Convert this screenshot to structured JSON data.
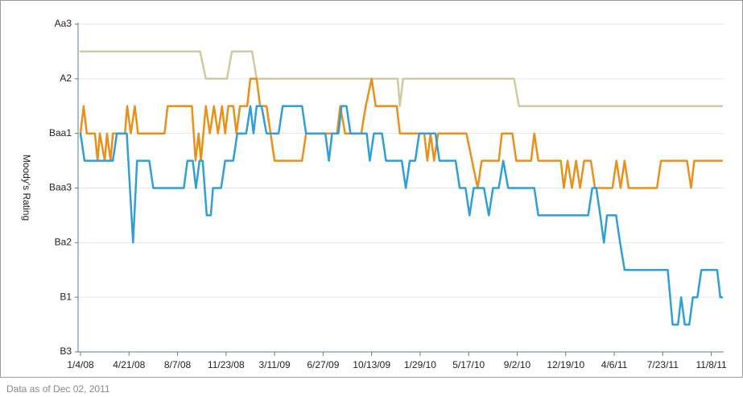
{
  "chart_data": {
    "type": "line",
    "y_label": "Moody's Rating",
    "footnote": "Data as of Dec 02, 2011",
    "xlim": [
      "1/4/08",
      "12/2/11"
    ],
    "xticks": [
      "1/4/08",
      "4/21/08",
      "8/7/08",
      "11/23/08",
      "3/11/09",
      "6/27/09",
      "10/13/09",
      "1/29/10",
      "5/17/10",
      "9/2/10",
      "12/19/10",
      "4/6/11",
      "7/23/11",
      "11/8/11"
    ],
    "ylim": [
      0,
      12
    ],
    "yticks": [
      {
        "value": 0,
        "label": "B3"
      },
      {
        "value": 2,
        "label": "B1"
      },
      {
        "value": 4,
        "label": "Ba2"
      },
      {
        "value": 6,
        "label": "Baa3"
      },
      {
        "value": 8,
        "label": "Baa1"
      },
      {
        "value": 10,
        "label": "A2"
      },
      {
        "value": 12,
        "label": "Aa3"
      }
    ],
    "grid": true,
    "series": [
      {
        "color": "#cfcaa0",
        "x": [
          "1/4/08",
          "9/26/08",
          "10/9/08",
          "11/25/08",
          "12/6/08",
          "1/20/09",
          "1/30/09",
          "12/10/09",
          "12/15/09",
          "12/22/09",
          "8/26/10",
          "9/6/10",
          "12/2/11"
        ],
        "values": [
          11,
          11,
          10,
          10,
          11,
          11,
          10,
          10,
          9,
          10,
          10,
          9,
          9
        ]
      },
      {
        "color": "#e8901a",
        "x": [
          "1/4/08",
          "1/11/08",
          "1/18/08",
          "2/5/08",
          "2/11/08",
          "2/16/08",
          "2/27/08",
          "3/3/08",
          "3/11/08",
          "3/16/08",
          "4/12/08",
          "4/17/08",
          "4/25/08",
          "5/4/08",
          "5/11/08",
          "7/9/08",
          "7/16/08",
          "9/8/08",
          "9/16/08",
          "9/23/08",
          "9/28/08",
          "10/9/08",
          "10/18/08",
          "10/27/08",
          "11/5/08",
          "11/14/08",
          "11/21/08",
          "11/28/08",
          "12/9/08",
          "12/16/08",
          "12/24/08",
          "1/9/09",
          "1/16/09",
          "1/30/09",
          "2/7/09",
          "2/21/09",
          "3/11/09",
          "5/11/09",
          "5/20/09",
          "7/28/09",
          "8/4/09",
          "8/15/09",
          "9/20/09",
          "9/30/09",
          "10/13/09",
          "10/22/09",
          "12/8/09",
          "12/15/09",
          "2/7/10",
          "2/14/10",
          "2/21/10",
          "3/1/10",
          "3/10/10",
          "5/12/10",
          "6/6/10",
          "6/15/10",
          "7/23/10",
          "7/30/10",
          "8/22/10",
          "8/31/10",
          "10/3/10",
          "10/10/10",
          "10/19/10",
          "12/8/10",
          "12/15/10",
          "12/23/10",
          "1/2/11",
          "1/11/11",
          "1/20/11",
          "1/29/11",
          "2/13/11",
          "2/22/11",
          "4/2/11",
          "4/11/11",
          "4/20/11",
          "4/29/11",
          "5/8/11",
          "7/10/11",
          "7/19/11",
          "9/15/11",
          "9/24/11",
          "10/1/11",
          "12/2/11"
        ],
        "values": [
          8,
          9,
          8,
          8,
          7,
          8,
          7,
          8,
          7,
          8,
          8,
          9,
          8,
          9,
          8,
          8,
          9,
          9,
          7,
          8,
          7,
          9,
          8,
          9,
          8,
          9,
          8,
          9,
          9,
          8,
          9,
          9,
          10,
          10,
          9,
          9,
          7,
          7,
          8,
          8,
          9,
          8,
          8,
          9,
          10,
          9,
          9,
          8,
          8,
          7,
          8,
          7,
          8,
          8,
          6,
          7,
          7,
          8,
          8,
          7,
          7,
          8,
          7,
          7,
          6,
          7,
          6,
          7,
          6,
          7,
          7,
          6,
          6,
          7,
          6,
          7,
          6,
          6,
          7,
          7,
          6,
          7,
          7
        ]
      },
      {
        "color": "#2e9fd8",
        "x": [
          "1/4/08",
          "1/13/08",
          "3/16/08",
          "3/25/08",
          "4/16/08",
          "4/30/08",
          "5/9/08",
          "6/5/08",
          "6/14/08",
          "8/21/08",
          "8/29/08",
          "9/10/08",
          "9/17/08",
          "9/25/08",
          "10/2/08",
          "10/11/08",
          "10/20/08",
          "10/25/08",
          "11/12/08",
          "11/21/08",
          "12/9/08",
          "12/18/08",
          "1/7/09",
          "1/16/09",
          "1/23/09",
          "1/30/09",
          "2/10/09",
          "2/21/09",
          "3/20/09",
          "3/29/09",
          "5/11/09",
          "5/20/09",
          "7/2/09",
          "7/10/09",
          "7/17/09",
          "7/31/09",
          "8/7/09",
          "8/18/09",
          "8/27/09",
          "10/2/09",
          "10/9/09",
          "10/18/09",
          "11/5/09",
          "11/14/09",
          "12/19/09",
          "12/28/09",
          "1/6/10",
          "1/18/10",
          "1/27/10",
          "3/4/10",
          "3/13/10",
          "4/18/10",
          "4/27/10",
          "5/10/10",
          "5/19/10",
          "5/28/10",
          "6/20/10",
          "7/1/10",
          "7/10/10",
          "7/23/10",
          "8/2/10",
          "8/13/10",
          "10/10/10",
          "10/19/10",
          "2/7/11",
          "2/16/11",
          "2/25/11",
          "3/6/11",
          "3/14/11",
          "3/21/11",
          "4/10/11",
          "4/19/11",
          "4/29/11",
          "8/3/11",
          "8/14/11",
          "8/26/11",
          "9/2/11",
          "9/10/11",
          "9/20/11",
          "9/28/11",
          "10/8/11",
          "10/17/11",
          "11/21/11",
          "11/28/11",
          "12/2/11"
        ],
        "values": [
          8,
          7,
          7,
          8,
          8,
          4,
          7,
          7,
          6,
          6,
          7,
          7,
          6,
          7,
          7,
          5,
          5,
          6,
          6,
          7,
          7,
          8,
          8,
          9,
          8,
          9,
          9,
          8,
          8,
          9,
          9,
          8,
          8,
          7,
          8,
          8,
          9,
          9,
          8,
          8,
          7,
          8,
          8,
          7,
          7,
          6,
          7,
          7,
          8,
          8,
          7,
          7,
          6,
          6,
          5,
          6,
          6,
          5,
          6,
          6,
          7,
          6,
          6,
          5,
          5,
          6,
          6,
          5,
          4,
          5,
          5,
          4,
          3,
          3,
          1,
          1,
          2,
          1,
          1,
          2,
          2,
          3,
          3,
          2,
          2
        ]
      }
    ]
  }
}
